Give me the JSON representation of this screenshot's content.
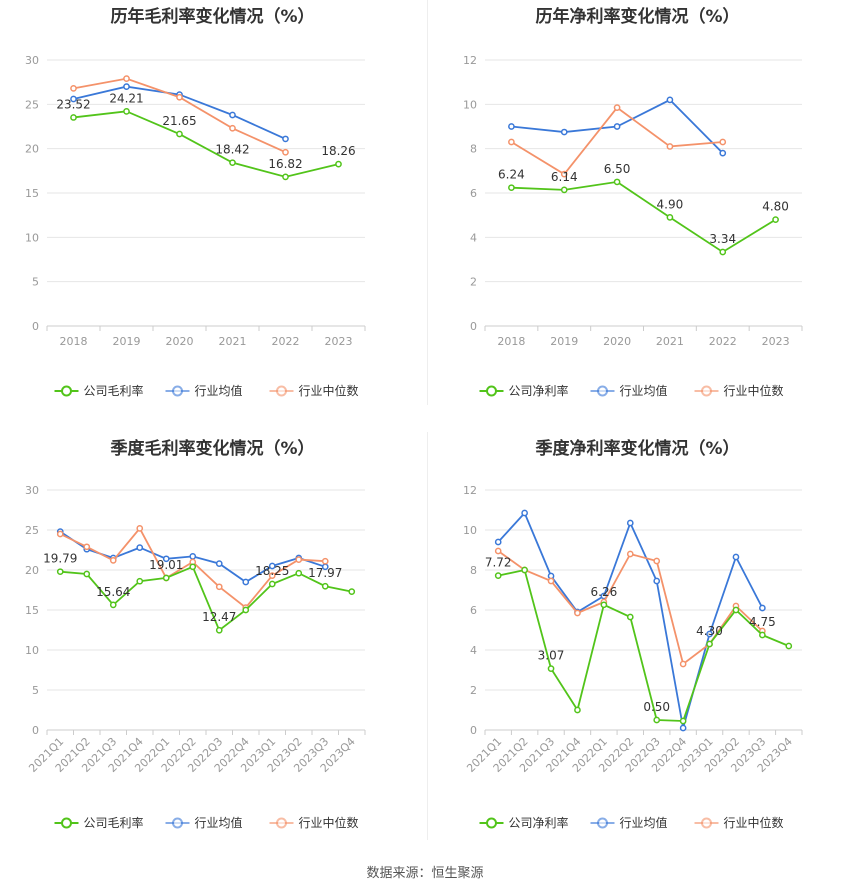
{
  "footer": {
    "source": "数据来源：恒生聚源"
  },
  "legend": {
    "company_gross": "公司毛利率",
    "company_net": "公司净利率",
    "industry_avg": "行业均值",
    "industry_median": "行业中位数"
  },
  "colors": {
    "company": "#52c41a",
    "avg": "#3a78d8",
    "median": "#f4926a",
    "grid": "#e6e6e6",
    "axis": "#999999"
  },
  "chart_data": [
    {
      "id": "annual-gross",
      "type": "line",
      "title": "历年毛利率变化情况（%）",
      "categories": [
        "2018",
        "2019",
        "2020",
        "2021",
        "2022",
        "2023"
      ],
      "ylim": [
        0,
        30
      ],
      "yticks": [
        0,
        5,
        10,
        15,
        20,
        25,
        30
      ],
      "legend": [
        "公司毛利率",
        "行业均值",
        "行业中位数"
      ],
      "series": [
        {
          "name": "公司毛利率",
          "color": "#52c41a",
          "values": [
            23.52,
            24.21,
            21.65,
            18.42,
            16.82,
            18.26
          ],
          "labels": [
            "23.52",
            "24.21",
            "21.65",
            "18.42",
            "16.82",
            "18.26"
          ]
        },
        {
          "name": "行业均值",
          "color": "#3a78d8",
          "values": [
            25.6,
            27.0,
            26.1,
            23.8,
            21.1,
            null
          ]
        },
        {
          "name": "行业中位数",
          "color": "#f4926a",
          "values": [
            26.8,
            27.9,
            25.8,
            22.3,
            19.6,
            null
          ]
        }
      ]
    },
    {
      "id": "annual-net",
      "type": "line",
      "title": "历年净利率变化情况（%）",
      "categories": [
        "2018",
        "2019",
        "2020",
        "2021",
        "2022",
        "2023"
      ],
      "ylim": [
        0,
        12
      ],
      "yticks": [
        0,
        2,
        4,
        6,
        8,
        10,
        12
      ],
      "legend": [
        "公司净利率",
        "行业均值",
        "行业中位数"
      ],
      "series": [
        {
          "name": "公司净利率",
          "color": "#52c41a",
          "values": [
            6.24,
            6.14,
            6.5,
            4.9,
            3.34,
            4.8
          ],
          "labels": [
            "6.24",
            "6.14",
            "6.50",
            "4.90",
            "3.34",
            "4.80"
          ]
        },
        {
          "name": "行业均值",
          "color": "#3a78d8",
          "values": [
            9.0,
            8.75,
            9.0,
            10.2,
            7.8,
            null
          ]
        },
        {
          "name": "行业中位数",
          "color": "#f4926a",
          "values": [
            8.3,
            6.85,
            9.85,
            8.1,
            8.3,
            null
          ]
        }
      ]
    },
    {
      "id": "quarterly-gross",
      "type": "line",
      "title": "季度毛利率变化情况（%）",
      "categories": [
        "2021Q1",
        "2021Q2",
        "2021Q3",
        "2021Q4",
        "2022Q1",
        "2022Q2",
        "2022Q3",
        "2022Q4",
        "2023Q1",
        "2023Q2",
        "2023Q3",
        "2023Q4"
      ],
      "ylim": [
        0,
        30
      ],
      "yticks": [
        0,
        5,
        10,
        15,
        20,
        25,
        30
      ],
      "legend": [
        "公司毛利率",
        "行业均值",
        "行业中位数"
      ],
      "series": [
        {
          "name": "公司毛利率",
          "color": "#52c41a",
          "values": [
            19.79,
            19.5,
            15.64,
            18.6,
            19.01,
            20.4,
            12.47,
            15.0,
            18.25,
            19.6,
            17.97,
            17.3
          ],
          "labels": [
            "19.79",
            "",
            "15.64",
            "",
            "19.01",
            "",
            "12.47",
            "",
            "18.25",
            "",
            "17.97",
            ""
          ]
        },
        {
          "name": "行业均值",
          "color": "#3a78d8",
          "values": [
            24.8,
            22.6,
            21.5,
            22.8,
            21.4,
            21.7,
            20.8,
            18.5,
            20.5,
            21.5,
            20.4,
            null
          ]
        },
        {
          "name": "行业中位数",
          "color": "#f4926a",
          "values": [
            24.5,
            22.9,
            21.2,
            25.2,
            19.0,
            21.0,
            17.9,
            15.3,
            19.3,
            21.3,
            21.1,
            null
          ]
        }
      ]
    },
    {
      "id": "quarterly-net",
      "type": "line",
      "title": "季度净利率变化情况（%）",
      "categories": [
        "2021Q1",
        "2021Q2",
        "2021Q3",
        "2021Q4",
        "2022Q1",
        "2022Q2",
        "2022Q3",
        "2022Q4",
        "2023Q1",
        "2023Q2",
        "2023Q3",
        "2023Q4"
      ],
      "ylim": [
        0,
        12
      ],
      "yticks": [
        0,
        2,
        4,
        6,
        8,
        10,
        12
      ],
      "legend": [
        "公司净利率",
        "行业均值",
        "行业中位数"
      ],
      "series": [
        {
          "name": "公司净利率",
          "color": "#52c41a",
          "values": [
            7.72,
            8.0,
            3.07,
            1.0,
            6.26,
            5.65,
            0.5,
            0.45,
            4.3,
            6.0,
            4.75,
            4.2
          ],
          "labels": [
            "7.72",
            "",
            "3.07",
            "",
            "6.26",
            "",
            "0.50",
            "",
            "4.30",
            "",
            "4.75",
            ""
          ]
        },
        {
          "name": "行业均值",
          "color": "#3a78d8",
          "values": [
            9.4,
            10.85,
            7.7,
            5.9,
            6.7,
            10.35,
            7.45,
            0.1,
            4.8,
            8.65,
            6.1,
            null
          ]
        },
        {
          "name": "行业中位数",
          "color": "#f4926a",
          "values": [
            8.95,
            8.0,
            7.45,
            5.85,
            6.4,
            8.8,
            8.45,
            3.3,
            4.3,
            6.2,
            4.95,
            null
          ]
        }
      ]
    }
  ]
}
